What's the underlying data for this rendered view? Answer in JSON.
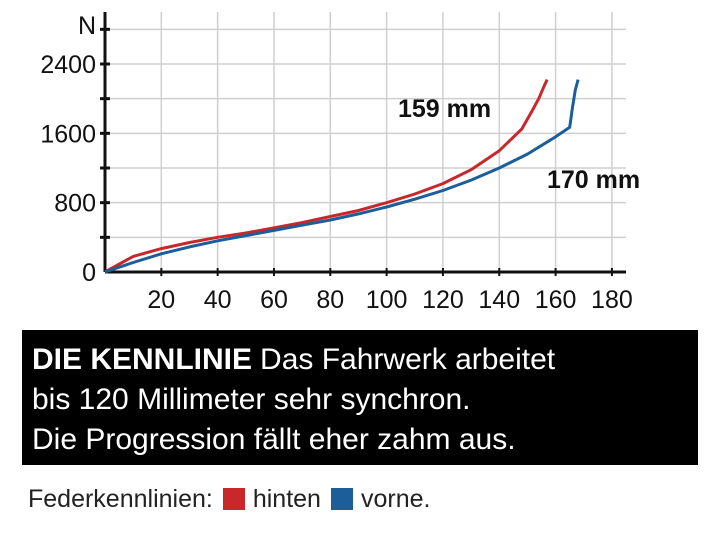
{
  "chart_data": {
    "type": "line",
    "xlabel": "",
    "ylabel": "N",
    "xlim": [
      0,
      185
    ],
    "ylim": [
      0,
      3000
    ],
    "x_ticks": [
      20,
      40,
      60,
      80,
      100,
      120,
      140,
      160,
      180
    ],
    "y_ticks": [
      0,
      800,
      1600,
      2400
    ],
    "grid": true,
    "series": [
      {
        "name": "hinten",
        "color": "#c8282c",
        "label": "159 mm",
        "points": [
          [
            0,
            0
          ],
          [
            10,
            180
          ],
          [
            20,
            270
          ],
          [
            30,
            340
          ],
          [
            40,
            400
          ],
          [
            50,
            450
          ],
          [
            60,
            510
          ],
          [
            70,
            570
          ],
          [
            80,
            640
          ],
          [
            90,
            710
          ],
          [
            100,
            800
          ],
          [
            110,
            900
          ],
          [
            120,
            1020
          ],
          [
            130,
            1180
          ],
          [
            140,
            1400
          ],
          [
            148,
            1650
          ],
          [
            152,
            1880
          ],
          [
            154,
            2000
          ],
          [
            156,
            2150
          ],
          [
            157,
            2220
          ]
        ]
      },
      {
        "name": "vorne",
        "color": "#1c5e9a",
        "label": "170 mm",
        "points": [
          [
            0,
            0
          ],
          [
            10,
            110
          ],
          [
            20,
            210
          ],
          [
            30,
            290
          ],
          [
            40,
            360
          ],
          [
            50,
            420
          ],
          [
            60,
            480
          ],
          [
            70,
            540
          ],
          [
            80,
            600
          ],
          [
            90,
            670
          ],
          [
            100,
            750
          ],
          [
            110,
            840
          ],
          [
            120,
            940
          ],
          [
            130,
            1060
          ],
          [
            140,
            1200
          ],
          [
            150,
            1360
          ],
          [
            160,
            1560
          ],
          [
            165,
            1670
          ],
          [
            166,
            1900
          ],
          [
            167,
            2100
          ],
          [
            168,
            2220
          ]
        ]
      }
    ]
  },
  "caption": {
    "lead": "DIE KENNLINIE",
    "line1": "Das Fahrwerk arbeitet",
    "line2": "bis 120 Millimeter sehr synchron.",
    "line3": "Die Progression fällt eher zahm aus."
  },
  "legend": {
    "prefix": "Federkennlinien:",
    "items": [
      {
        "label": "hinten",
        "color": "#c8282c"
      },
      {
        "label": "vorne.",
        "color": "#1c5e9a"
      }
    ]
  }
}
